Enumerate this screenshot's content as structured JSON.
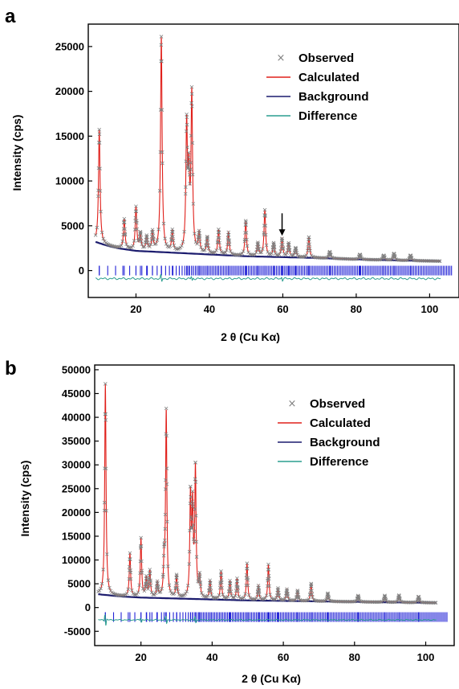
{
  "chart_data": [
    {
      "type": "line",
      "panel_label": "a",
      "xlabel": "2 θ (Cu Kα)",
      "ylabel": "Intensity (cps)",
      "xlim": [
        7,
        108
      ],
      "ylim": [
        -3000,
        27500
      ],
      "xticks": [
        20,
        40,
        60,
        80,
        100
      ],
      "yticks": [
        0,
        5000,
        10000,
        15000,
        20000,
        25000
      ],
      "legend_position": "top-right",
      "legend": [
        {
          "label": "Observed",
          "marker": "×",
          "color": "#808080"
        },
        {
          "label": "Calculated",
          "color": "#e0201b"
        },
        {
          "label": "Background",
          "color": "#1c1c6e"
        },
        {
          "label": "Difference",
          "color": "#2a9d8f"
        }
      ],
      "colors": {
        "observed": "#808080",
        "calculated": "#e0201b",
        "background": "#1c1c6e",
        "difference": "#2a9d8f",
        "reflections": "#2323d6"
      },
      "background": {
        "x": [
          9,
          12,
          15,
          20,
          30,
          40,
          50,
          60,
          70,
          80,
          90,
          103
        ],
        "y": [
          3200,
          2800,
          2500,
          2200,
          2000,
          1800,
          1600,
          1500,
          1400,
          1250,
          1150,
          1050
        ]
      },
      "peaks": [
        {
          "x": 10.0,
          "y": 15700
        },
        {
          "x": 16.8,
          "y": 5700
        },
        {
          "x": 20.0,
          "y": 7000
        },
        {
          "x": 21.2,
          "y": 4000
        },
        {
          "x": 22.9,
          "y": 3700
        },
        {
          "x": 24.5,
          "y": 4200
        },
        {
          "x": 26.9,
          "y": 26000
        },
        {
          "x": 29.9,
          "y": 4300
        },
        {
          "x": 33.8,
          "y": 15700
        },
        {
          "x": 34.4,
          "y": 9500
        },
        {
          "x": 35.2,
          "y": 19300
        },
        {
          "x": 37.2,
          "y": 4000
        },
        {
          "x": 39.4,
          "y": 3600
        },
        {
          "x": 42.5,
          "y": 4500
        },
        {
          "x": 45.2,
          "y": 4200
        },
        {
          "x": 49.9,
          "y": 5500
        },
        {
          "x": 53.2,
          "y": 3000
        },
        {
          "x": 55.1,
          "y": 6700
        },
        {
          "x": 57.5,
          "y": 3000
        },
        {
          "x": 59.8,
          "y": 3500
        },
        {
          "x": 61.6,
          "y": 3000
        },
        {
          "x": 63.5,
          "y": 2500
        },
        {
          "x": 67.1,
          "y": 3700
        },
        {
          "x": 72.8,
          "y": 2100
        },
        {
          "x": 81.0,
          "y": 1800
        },
        {
          "x": 87.5,
          "y": 1700
        },
        {
          "x": 90.3,
          "y": 1900
        },
        {
          "x": 94.8,
          "y": 1700
        }
      ],
      "annotation": {
        "type": "arrow",
        "x": 59.8,
        "y": 3700
      },
      "reflection_ticks_y": 0,
      "difference_offset_y": -900,
      "difference_bumps": [
        {
          "x": 26.9,
          "y": -500
        },
        {
          "x": 35.2,
          "y": -300
        },
        {
          "x": 59.8,
          "y": -250
        }
      ]
    },
    {
      "type": "line",
      "panel_label": "b",
      "xlabel": "2 θ (Cu Kα)",
      "ylabel": "Intensity (cps)",
      "xlim": [
        7,
        108
      ],
      "ylim": [
        -8000,
        51000
      ],
      "xticks": [
        20,
        40,
        60,
        80,
        100
      ],
      "yticks": [
        -5000,
        0,
        5000,
        10000,
        15000,
        20000,
        25000,
        30000,
        35000,
        40000,
        45000,
        50000
      ],
      "legend_position": "top-right",
      "legend": [
        {
          "label": "Observed",
          "marker": "×",
          "color": "#808080"
        },
        {
          "label": "Calculated",
          "color": "#e0201b"
        },
        {
          "label": "Background",
          "color": "#1c1c6e"
        },
        {
          "label": "Difference",
          "color": "#2a9d8f"
        }
      ],
      "colors": {
        "observed": "#808080",
        "calculated": "#e0201b",
        "background": "#1c1c6e",
        "difference": "#2a9d8f",
        "reflections": "#2323d6"
      },
      "background": {
        "x": [
          8,
          12,
          15,
          20,
          30,
          40,
          50,
          60,
          70,
          80,
          90,
          103
        ],
        "y": [
          2800,
          2500,
          2300,
          2100,
          1900,
          1700,
          1500,
          1400,
          1300,
          1200,
          1100,
          1000
        ]
      },
      "peaks": [
        {
          "x": 10.0,
          "y": 47000
        },
        {
          "x": 16.9,
          "y": 11300
        },
        {
          "x": 20.0,
          "y": 14400
        },
        {
          "x": 21.5,
          "y": 6000
        },
        {
          "x": 22.5,
          "y": 7500
        },
        {
          "x": 24.6,
          "y": 5000
        },
        {
          "x": 26.5,
          "y": 8000
        },
        {
          "x": 27.1,
          "y": 41000
        },
        {
          "x": 30.0,
          "y": 6500
        },
        {
          "x": 33.9,
          "y": 22500
        },
        {
          "x": 34.5,
          "y": 20000
        },
        {
          "x": 35.3,
          "y": 28500
        },
        {
          "x": 36.5,
          "y": 6000
        },
        {
          "x": 39.4,
          "y": 5500
        },
        {
          "x": 42.5,
          "y": 7500
        },
        {
          "x": 45.0,
          "y": 5500
        },
        {
          "x": 47.0,
          "y": 6000
        },
        {
          "x": 49.8,
          "y": 9200
        },
        {
          "x": 53.0,
          "y": 4500
        },
        {
          "x": 55.8,
          "y": 9000
        },
        {
          "x": 58.5,
          "y": 4000
        },
        {
          "x": 61.0,
          "y": 3800
        },
        {
          "x": 64.0,
          "y": 3500
        },
        {
          "x": 67.8,
          "y": 5000
        },
        {
          "x": 72.5,
          "y": 3000
        },
        {
          "x": 81.0,
          "y": 2500
        },
        {
          "x": 88.5,
          "y": 2500
        },
        {
          "x": 92.5,
          "y": 2600
        },
        {
          "x": 98.0,
          "y": 2300
        }
      ],
      "reflection_ticks_y": -2000,
      "difference_offset_y": -2600,
      "difference_bumps": [
        {
          "x": 10.0,
          "y": -1600
        },
        {
          "x": 27.1,
          "y": -1000
        },
        {
          "x": 35.3,
          "y": -900
        },
        {
          "x": 20.0,
          "y": -600
        }
      ]
    }
  ]
}
